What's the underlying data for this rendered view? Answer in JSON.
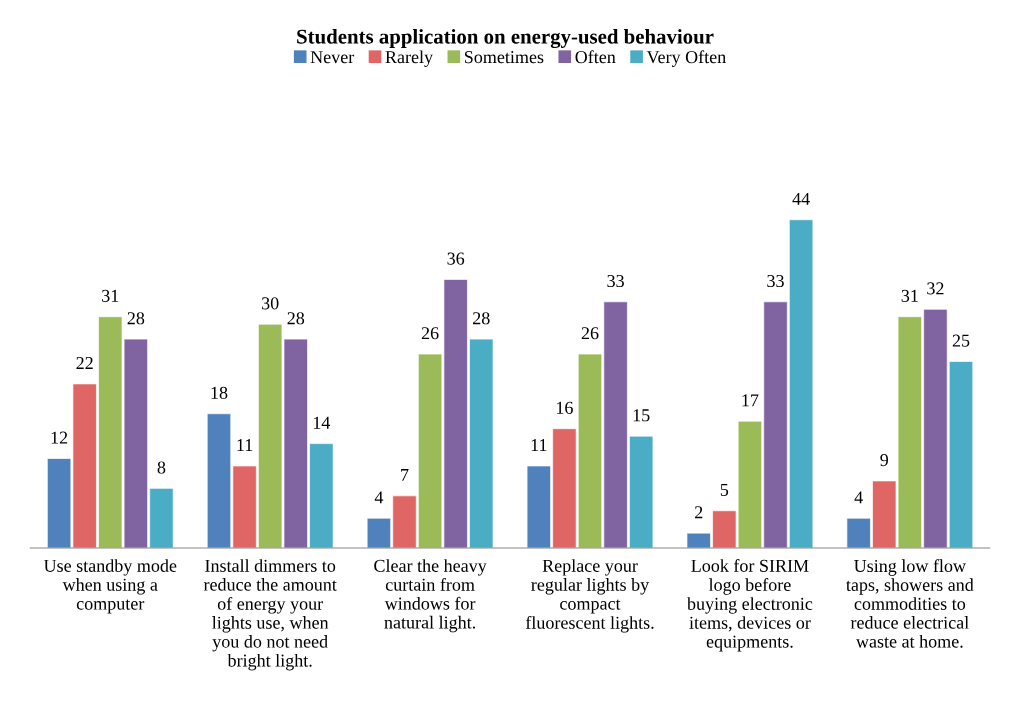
{
  "chart_data": {
    "type": "bar",
    "title": "Students application on energy-used behaviour",
    "categories": [
      "Use standby mode\nwhen using a\ncomputer",
      "Install dimmers to\nreduce the amount\nof energy your\nlights use, when\nyou do not need\nbright light.",
      "Clear the heavy\ncurtain from\nwindows for\nnatural light.",
      "Replace your\nregular lights by\ncompact\nfluorescent lights.",
      "Look for SIRIM\nlogo before\nbuying electronic\nitems, devices or\nequipments.",
      "Using low flow\ntaps, showers and\ncommodities to\nreduce electrical\nwaste at home."
    ],
    "series": [
      {
        "name": "Never",
        "color": "#4f81bd",
        "values": [
          12,
          18,
          4,
          11,
          2,
          4
        ]
      },
      {
        "name": "Rarely",
        "color": "#e06666",
        "values": [
          22,
          11,
          7,
          16,
          5,
          9
        ]
      },
      {
        "name": "Sometimes",
        "color": "#9bbb59",
        "values": [
          31,
          30,
          26,
          26,
          17,
          31
        ]
      },
      {
        "name": "Often",
        "color": "#8064a2",
        "values": [
          28,
          28,
          36,
          33,
          33,
          32
        ]
      },
      {
        "name": "Very Often",
        "color": "#4bacc6",
        "values": [
          8,
          14,
          28,
          15,
          44,
          25
        ]
      }
    ],
    "data_labels": true,
    "legend": "top",
    "tick_labels": "x"
  }
}
